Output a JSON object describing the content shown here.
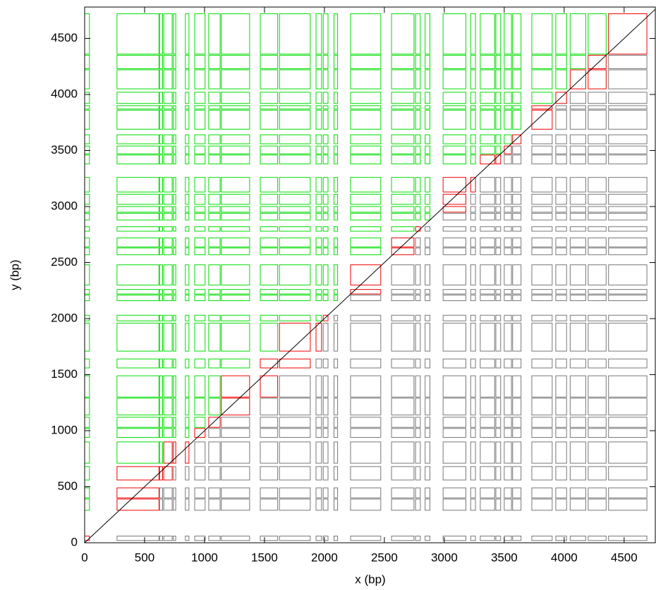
{
  "chart_data": {
    "type": "interval-grid",
    "x_label": "x (bp)",
    "y_label": "y (bp)",
    "xlim": [
      0,
      4760
    ],
    "ylim": [
      0,
      4780
    ],
    "xticks": [
      0,
      500,
      1000,
      1500,
      2000,
      2500,
      3000,
      3500,
      4000,
      4500
    ],
    "yticks": [
      0,
      500,
      1000,
      1500,
      2000,
      2500,
      3000,
      3500,
      4000,
      4500
    ],
    "colors": {
      "above": "#00dd00",
      "crossing": "#ee0000",
      "below": "#777777"
    },
    "x_intervals": [
      [
        0,
        40
      ],
      [
        270,
        620
      ],
      [
        625,
        650
      ],
      [
        660,
        730
      ],
      [
        740,
        760
      ],
      [
        840,
        870
      ],
      [
        918,
        1005
      ],
      [
        1035,
        1130
      ],
      [
        1140,
        1376
      ],
      [
        1465,
        1610
      ],
      [
        1625,
        1882
      ],
      [
        1930,
        1976
      ],
      [
        1990,
        2030
      ],
      [
        2080,
        2110
      ],
      [
        2218,
        2470
      ],
      [
        2560,
        2747
      ],
      [
        2760,
        2800
      ],
      [
        2840,
        2880
      ],
      [
        2990,
        3180
      ],
      [
        3220,
        3260
      ],
      [
        3300,
        3420
      ],
      [
        3430,
        3470
      ],
      [
        3500,
        3560
      ],
      [
        3570,
        3640
      ],
      [
        3730,
        3900
      ],
      [
        3930,
        4020
      ],
      [
        4050,
        4180
      ],
      [
        4200,
        4350
      ],
      [
        4370,
        4690
      ]
    ],
    "y_intervals": [
      [
        20,
        60
      ],
      [
        290,
        390
      ],
      [
        400,
        490
      ],
      [
        560,
        680
      ],
      [
        710,
        900
      ],
      [
        940,
        1020
      ],
      [
        1030,
        1120
      ],
      [
        1140,
        1290
      ],
      [
        1300,
        1490
      ],
      [
        1560,
        1640
      ],
      [
        1710,
        1960
      ],
      [
        1980,
        2030
      ],
      [
        2160,
        2210
      ],
      [
        2220,
        2260
      ],
      [
        2300,
        2480
      ],
      [
        2570,
        2630
      ],
      [
        2640,
        2720
      ],
      [
        2780,
        2820
      ],
      [
        2880,
        2940
      ],
      [
        2950,
        3000
      ],
      [
        3020,
        3110
      ],
      [
        3130,
        3260
      ],
      [
        3380,
        3460
      ],
      [
        3470,
        3540
      ],
      [
        3560,
        3640
      ],
      [
        3690,
        3860
      ],
      [
        3870,
        3900
      ],
      [
        3920,
        4020
      ],
      [
        4050,
        4220
      ],
      [
        4230,
        4350
      ],
      [
        4360,
        4720
      ]
    ]
  }
}
